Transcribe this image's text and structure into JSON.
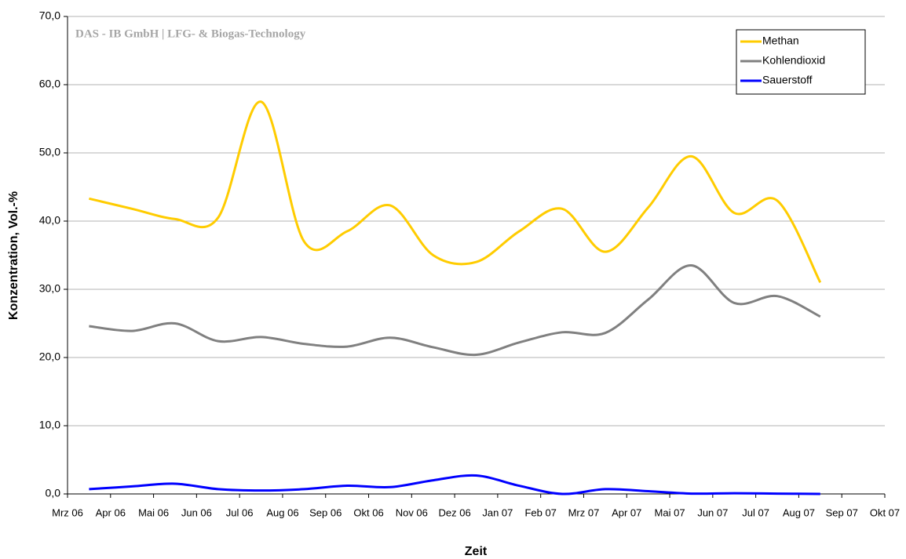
{
  "chart_data": {
    "type": "line",
    "watermark": "DAS - IB GmbH | LFG- & Biogas-Technology",
    "y_label": "Konzentration, Vol.-%",
    "x_label": "Zeit",
    "x": [
      "2006-03",
      "2006-04",
      "2006-05",
      "2006-06",
      "2006-07",
      "2006-08",
      "2006-09",
      "2006-10",
      "2006-11",
      "2006-12",
      "2007-01",
      "2007-02",
      "2007-03",
      "2007-04",
      "2007-05",
      "2007-06",
      "2007-07",
      "2007-08"
    ],
    "xtick_labels": [
      "Mrz 06",
      "Apr 06",
      "Mai 06",
      "Jun 06",
      "Jul 06",
      "Aug 06",
      "Sep 06",
      "Okt 06",
      "Nov 06",
      "Dez 06",
      "Jan 07",
      "Feb 07",
      "Mrz 07",
      "Apr 07",
      "Mai 07",
      "Jun 07",
      "Jul 07",
      "Aug 07",
      "Sep 07",
      "Okt 07"
    ],
    "series": [
      {
        "name": "Methan",
        "color": "#ffcc00",
        "values": [
          43.3,
          41.8,
          40.3,
          40.5,
          57.5,
          37,
          38.5,
          42.3,
          35,
          34,
          38.5,
          41.8,
          35.5,
          42,
          49.5,
          41.2,
          43,
          31
        ]
      },
      {
        "name": "Kohlendioxid",
        "color": "#808080",
        "values": [
          24.6,
          23.9,
          25.0,
          22.4,
          23.0,
          22.0,
          21.6,
          22.9,
          21.5,
          20.4,
          22.2,
          23.7,
          23.6,
          28.5,
          33.5,
          28,
          29,
          26
        ]
      },
      {
        "name": "Sauerstoff",
        "color": "#0000ff",
        "values": [
          0.7,
          1.1,
          1.5,
          0.7,
          0.5,
          0.7,
          1.2,
          1.0,
          2.0,
          2.7,
          1.2,
          0.0,
          0.7,
          0.4,
          0.05,
          0.1,
          0.05,
          0.0
        ]
      }
    ],
    "ylim": [
      0,
      70
    ],
    "yticks": [
      {
        "value": 0,
        "label": "0,0"
      },
      {
        "value": 10,
        "label": "10,0"
      },
      {
        "value": 20,
        "label": "20,0"
      },
      {
        "value": 30,
        "label": "30,0"
      },
      {
        "value": 40,
        "label": "40,0"
      },
      {
        "value": 50,
        "label": "50,0"
      },
      {
        "value": 60,
        "label": "60,0"
      },
      {
        "value": 70,
        "label": "70,0"
      }
    ],
    "grid": true,
    "legend": "top-right"
  }
}
